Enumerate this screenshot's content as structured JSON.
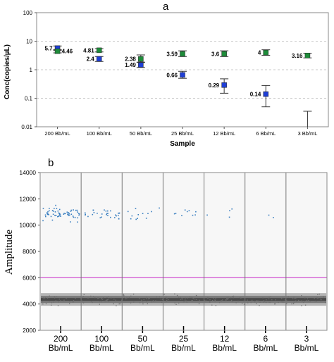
{
  "panels": {
    "a": {
      "label": "a",
      "chart_data": {
        "type": "scatter",
        "title": "",
        "xlabel": "Sample",
        "ylabel": "Conc(copies/µL)",
        "yscale": "log",
        "ylim": [
          0.01,
          100
        ],
        "yticks": [
          "0.01",
          "0.1",
          "1",
          "10",
          "100"
        ],
        "categories": [
          "200 Bb/mL",
          "100 Bb/mL",
          "50 Bb/mL",
          "25 Bb/mL",
          "12 Bb/mL",
          "6 Bb/mL",
          "3 Bb/mL"
        ],
        "grid": "dashed horizontal",
        "series": [
          {
            "color": "#1f3fd6",
            "marker": "square",
            "values": [
              5.7,
              2.4,
              1.49,
              0.66,
              0.29,
              0.14,
              null
            ],
            "labels": [
              "5.7",
              "2.4",
              "1.49",
              "0.66",
              "0.29",
              "0.14",
              ""
            ],
            "err_low": [
              4.8,
              1.95,
              1.2,
              0.5,
              0.15,
              0.05,
              null
            ],
            "err_high": [
              6.8,
              2.9,
              1.85,
              0.88,
              0.48,
              0.28,
              null
            ]
          },
          {
            "color": "#1e8c3a",
            "marker": "square",
            "values": [
              4.46,
              4.81,
              2.38,
              3.59,
              3.6,
              4,
              3.16
            ],
            "labels": [
              "4.46",
              "4.81",
              "2.38",
              "3.59",
              "3.6",
              "4",
              "3.16"
            ],
            "err_low": [
              3.9,
              4.2,
              1.8,
              2.9,
              2.9,
              3.2,
              2.6
            ],
            "err_high": [
              5.1,
              5.5,
              3.3,
              4.6,
              4.6,
              5.0,
              3.8
            ]
          }
        ],
        "extra_errorbar": {
          "category_index": 6,
          "low": 0.01,
          "high": 0.035
        }
      }
    },
    "b": {
      "label": "b",
      "chart_data": {
        "type": "scatter",
        "title": "",
        "ylabel": "Amplitude",
        "ylim": [
          2000,
          14000
        ],
        "yticks": [
          "2000",
          "4000",
          "6000",
          "8000",
          "10000",
          "12000",
          "14000"
        ],
        "categories": [
          "200\nBb/mL",
          "100\nBb/mL",
          "50\nBb/mL",
          "25\nBb/mL",
          "12\nBb/mL",
          "6\nBb/mL",
          "3\nBb/mL"
        ],
        "category_lines": [
          [
            "200",
            "Bb/mL"
          ],
          [
            "100",
            "Bb/mL"
          ],
          [
            "50",
            "Bb/mL"
          ],
          [
            "25",
            "Bb/mL"
          ],
          [
            "12",
            "Bb/mL"
          ],
          [
            "6",
            "Bb/mL"
          ],
          [
            "3",
            "Bb/mL"
          ]
        ],
        "threshold": 6000,
        "threshold_color": "#d35fd3",
        "negative_band": {
          "center": 4350,
          "spread": 300,
          "color": "#555555"
        },
        "positive_droplets": {
          "color": "#3a7fc0",
          "counts": [
            60,
            30,
            12,
            9,
            4,
            2,
            0
          ],
          "center": 10900,
          "spread": 600
        }
      }
    }
  }
}
